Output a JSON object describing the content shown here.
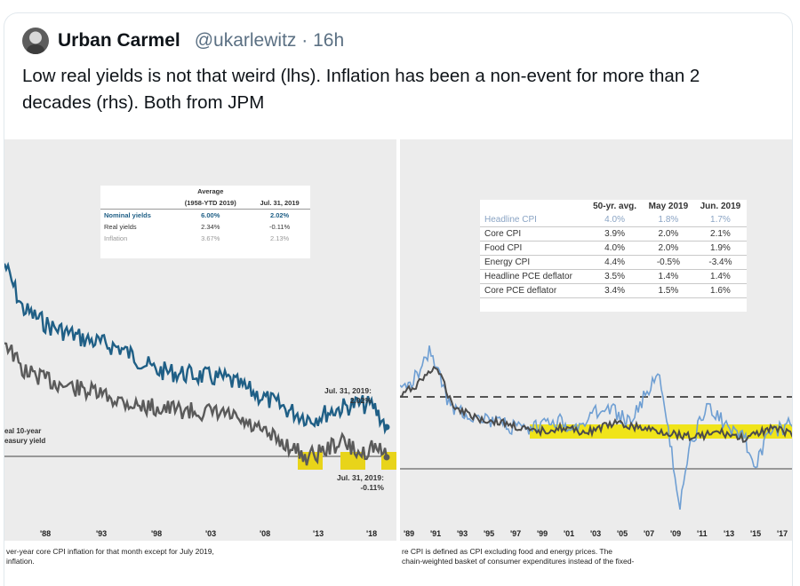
{
  "tweet": {
    "author_name": "Urban Carmel",
    "author_handle": "@ukarlewitz",
    "separator": "·",
    "time_ago": "16h",
    "text": "Low real yields is not that weird (lhs). Inflation has been a non-event for more than 2 decades (rhs). Both from JPM"
  },
  "left_image": {
    "table": {
      "header_top": "Average",
      "col1": "(1958-YTD 2019)",
      "col2": "Jul. 31, 2019",
      "rows": [
        {
          "label": "Nominal yields",
          "avg": "6.00%",
          "jul": "2.02%"
        },
        {
          "label": "Real yields",
          "avg": "2.34%",
          "jul": "-0.11%"
        },
        {
          "label": "Inflation",
          "avg": "3.67%",
          "jul": "2.13%"
        }
      ]
    },
    "annot_top_1": "Jul. 31, 2019:",
    "annot_top_2": "2.02%",
    "annot_bot_1": "Jul. 31, 2019:",
    "annot_bot_2": "-0.11%",
    "axis_label_1": "eal 10-year",
    "axis_label_2": "easury yield",
    "x_ticks": [
      "'88",
      "'93",
      "'98",
      "'03",
      "'08",
      "'13",
      "'18"
    ],
    "footnote_1": "ver-year core CPI inflation for that month except for July 2019,",
    "footnote_2": "inflation.",
    "colors": {
      "nominal": "#1f5f86",
      "real": "#5a5a5a",
      "highlight": "#e8d41a"
    }
  },
  "right_image": {
    "table": {
      "headers": [
        "",
        "50-yr. avg.",
        "May 2019",
        "Jun. 2019"
      ],
      "rows": [
        {
          "label": "Headline CPI",
          "a": "4.0%",
          "b": "1.8%",
          "c": "1.7%"
        },
        {
          "label": "Core CPI",
          "a": "3.9%",
          "b": "2.0%",
          "c": "2.1%"
        },
        {
          "label": "Food CPI",
          "a": "4.0%",
          "b": "2.0%",
          "c": "1.9%"
        },
        {
          "label": "Energy CPI",
          "a": "4.4%",
          "b": "-0.5%",
          "c": "-3.4%"
        },
        {
          "label": "Headline PCE deflator",
          "a": "3.5%",
          "b": "1.4%",
          "c": "1.4%"
        },
        {
          "label": "Core PCE deflator",
          "a": "3.4%",
          "b": "1.5%",
          "c": "1.6%"
        }
      ]
    },
    "x_ticks": [
      "'89",
      "'91",
      "'93",
      "'95",
      "'97",
      "'99",
      "'01",
      "'03",
      "'05",
      "'07",
      "'09",
      "'11",
      "'13",
      "'15",
      "'17"
    ],
    "footnote_1": "re CPI is defined as CPI excluding food and energy prices. The",
    "footnote_2": "chain-weighted basket of consumer expenditures instead of the fixed-",
    "colors": {
      "headline": "#6f9fd3",
      "core": "#4b4b4b",
      "band": "#f0e41a",
      "band_line": "#6bb82e"
    }
  }
}
